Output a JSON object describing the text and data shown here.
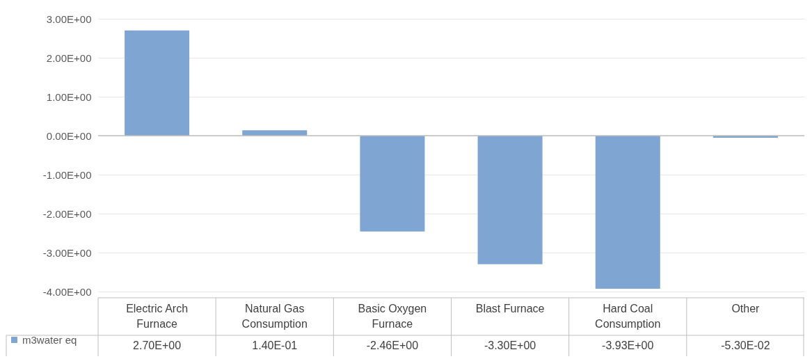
{
  "chart_data": {
    "type": "bar",
    "categories": [
      "Electric Arch Furnace",
      "Natural Gas Consumption",
      "Basic Oxygen Furnace",
      "Blast Furnace",
      "Hard Coal Consumption",
      "Other"
    ],
    "series": [
      {
        "name": "m3water eq",
        "color": "#7fa6d3",
        "values": [
          2.7,
          0.14,
          -2.46,
          -3.3,
          -3.93,
          -0.053
        ],
        "value_labels": [
          "2.70E+00",
          "1.40E-01",
          "-2.46E+00",
          "-3.30E+00",
          "-3.93E+00",
          "-5.30E-02"
        ]
      }
    ],
    "ylim": [
      -4,
      3
    ],
    "yticks": [
      {
        "value": -4,
        "label": "-4.00E+00"
      },
      {
        "value": -3,
        "label": "-3.00E+00"
      },
      {
        "value": -2,
        "label": "-2.00E+00"
      },
      {
        "value": -1,
        "label": "-1.00E+00"
      },
      {
        "value": 0,
        "label": "0.00E+00"
      },
      {
        "value": 1,
        "label": "1.00E+00"
      },
      {
        "value": 2,
        "label": "2.00E+00"
      },
      {
        "value": 3,
        "label": "3.00E+00"
      }
    ],
    "grid": "y",
    "legend": "bottom left"
  }
}
